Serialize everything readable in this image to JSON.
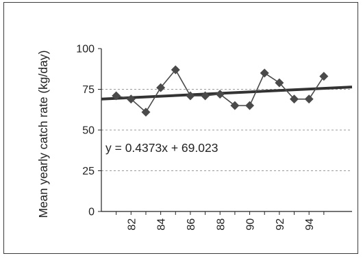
{
  "chart_data": {
    "type": "line",
    "title": "",
    "xlabel": "",
    "ylabel": "Mean yearly catch rate (kg/day)",
    "ylim": [
      0,
      100
    ],
    "xlim": [
      80,
      96.9
    ],
    "yticks": [
      0,
      25,
      50,
      75,
      100
    ],
    "xtick_labels": [
      "82",
      "84",
      "86",
      "88",
      "90",
      "92",
      "94"
    ],
    "grid": "horizontal-dashed",
    "series": [
      {
        "x": [
          81,
          82,
          83,
          84,
          85,
          86,
          87,
          88,
          89,
          90,
          91,
          92,
          93,
          94,
          95
        ],
        "values": [
          71,
          69,
          61,
          76,
          87,
          71,
          71,
          72,
          65,
          65,
          85,
          79,
          69,
          69,
          83
        ],
        "color": "#4a4a4a",
        "marker": "diamond"
      }
    ],
    "trendline": {
      "slope": 0.4373,
      "intercept": 69.023,
      "x_offset": 80,
      "label": "y = 0.4373x + 69.023",
      "color": "#333333"
    }
  }
}
